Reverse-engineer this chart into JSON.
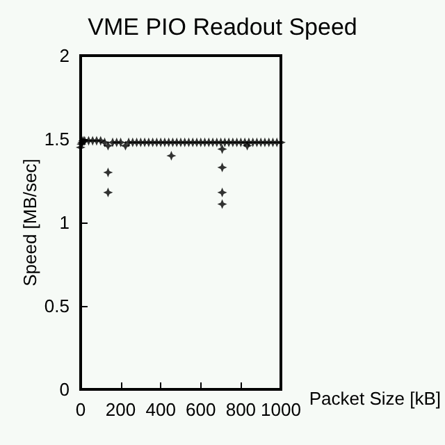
{
  "chart_data": {
    "type": "scatter",
    "title": "VME PIO Readout Speed",
    "xlabel": "Packet Size [kB]",
    "ylabel": "Speed [MB/sec]",
    "x": [
      0,
      4,
      8,
      12,
      20,
      40,
      60,
      80,
      100,
      120,
      137,
      137,
      137,
      160,
      180,
      200,
      224,
      240,
      260,
      280,
      300,
      320,
      340,
      360,
      380,
      400,
      420,
      440,
      453,
      460,
      480,
      500,
      520,
      540,
      560,
      580,
      600,
      620,
      640,
      660,
      680,
      700,
      707,
      707,
      707,
      707,
      720,
      740,
      760,
      780,
      800,
      820,
      832,
      840,
      860,
      880,
      900,
      920,
      940,
      960,
      980,
      1000
    ],
    "values": [
      1.45,
      1.47,
      1.48,
      1.49,
      1.49,
      1.49,
      1.49,
      1.49,
      1.49,
      1.48,
      1.46,
      1.3,
      1.18,
      1.48,
      1.48,
      1.48,
      1.46,
      1.48,
      1.48,
      1.48,
      1.48,
      1.48,
      1.48,
      1.48,
      1.48,
      1.48,
      1.48,
      1.48,
      1.4,
      1.48,
      1.48,
      1.48,
      1.48,
      1.48,
      1.48,
      1.48,
      1.48,
      1.48,
      1.48,
      1.48,
      1.48,
      1.48,
      1.44,
      1.33,
      1.18,
      1.11,
      1.48,
      1.48,
      1.48,
      1.48,
      1.48,
      1.48,
      1.46,
      1.48,
      1.48,
      1.48,
      1.48,
      1.48,
      1.48,
      1.48,
      1.48,
      1.48
    ],
    "color": "#000000",
    "marker": "star",
    "xlim": [
      0,
      1000
    ],
    "xticks": [
      0,
      200,
      400,
      600,
      800,
      1000
    ],
    "ylim": [
      0,
      2
    ],
    "yticks": [
      0,
      0.5,
      1,
      1.5,
      2
    ],
    "grid": false
  }
}
